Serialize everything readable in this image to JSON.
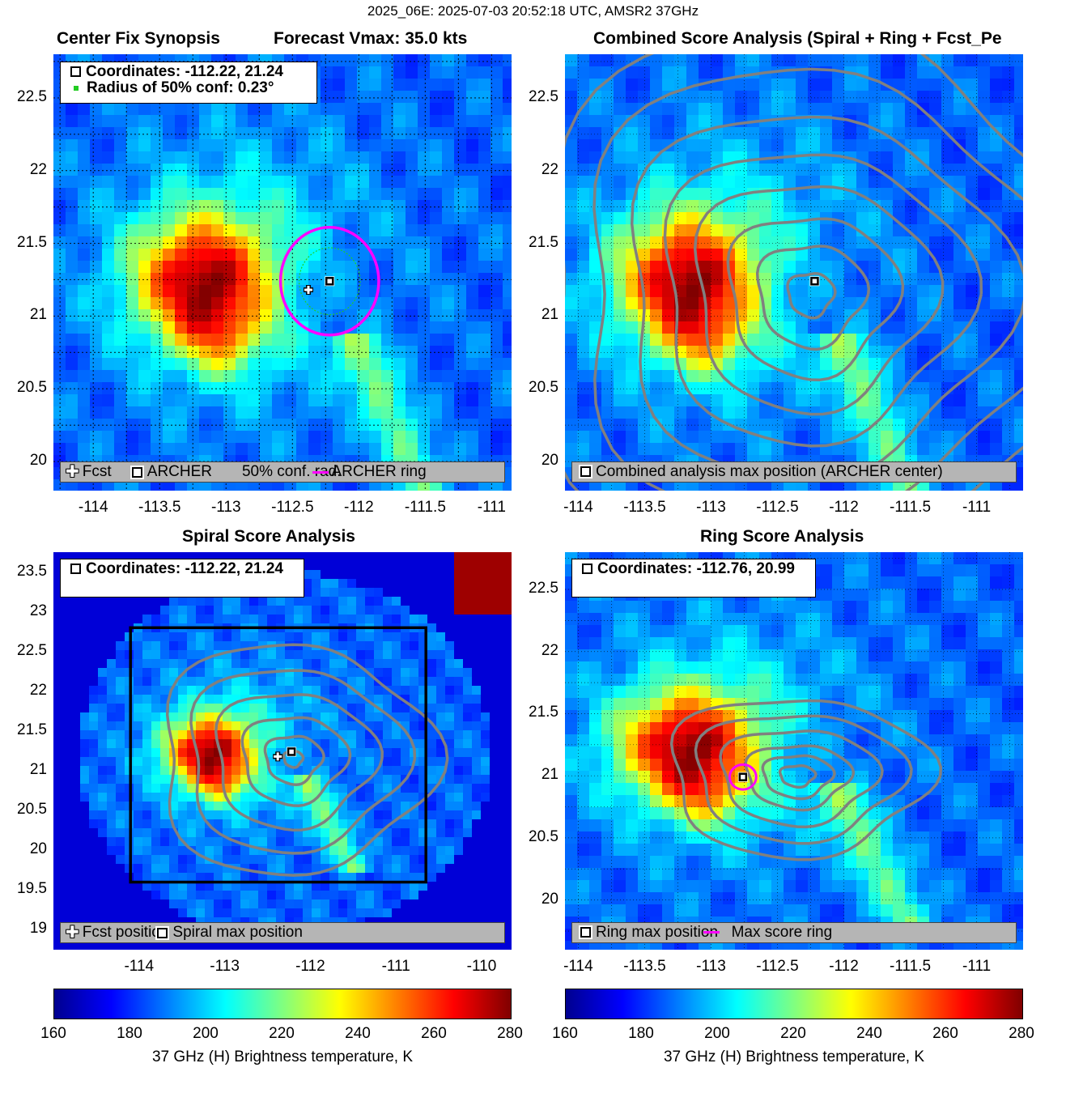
{
  "title": "2025_06E: 2025-07-03 20:52:18 UTC, AMSR2 37GHz",
  "panels": {
    "synopsis": {
      "title_left": "Center Fix Synopsis",
      "title_right": "Forecast Vmax: 35.0 kts",
      "info": [
        "Coordinates: -112.22, 21.24",
        "Radius of 50% conf: 0.23°"
      ],
      "legend": {
        "fcst": "Fcst",
        "archer": "ARCHER",
        "conf": "50% conf. rad.",
        "ring": "ARCHER ring"
      },
      "xticks": [
        "-114",
        "-113.5",
        "-113",
        "-112.5",
        "-112",
        "-111.5",
        "-111"
      ],
      "yticks": [
        "22.5",
        "22",
        "21.5",
        "21",
        "20.5",
        "20"
      ]
    },
    "combined": {
      "title": "Combined Score Analysis (Spiral + Ring + Fcst_Pe",
      "legend": "Combined analysis max position (ARCHER center)",
      "xticks": [
        "-114",
        "-113.5",
        "-113",
        "-112.5",
        "-112",
        "-111.5",
        "-111"
      ],
      "yticks": [
        "22.5",
        "22",
        "21.5",
        "21",
        "20.5",
        "20"
      ]
    },
    "spiral": {
      "title": "Spiral Score Analysis",
      "info": "Coordinates: -112.22, 21.24",
      "legend": {
        "fcst": "Fcst position",
        "max": "Spiral max position"
      },
      "xticks": [
        "-114",
        "-113",
        "-112",
        "-111",
        "-110"
      ],
      "yticks": [
        "23.5",
        "23",
        "22.5",
        "22",
        "21.5",
        "21",
        "20.5",
        "20",
        "19.5",
        "19"
      ]
    },
    "ring": {
      "title": "Ring Score Analysis",
      "info": "Coordinates: -112.76, 20.99",
      "legend": {
        "max": "Ring max position",
        "ring": "Max score ring"
      },
      "xticks": [
        "-114",
        "-113.5",
        "-113",
        "-112.5",
        "-112",
        "-111.5",
        "-111"
      ],
      "yticks": [
        "22.5",
        "22",
        "21.5",
        "21",
        "20.5",
        "20"
      ]
    }
  },
  "colorbar": {
    "ticks": [
      "160",
      "180",
      "200",
      "220",
      "240",
      "260",
      "280"
    ],
    "label": "37 GHz (H) Brightness temperature, K"
  },
  "chart_data": [
    {
      "type": "heatmap",
      "title": "Center Fix Synopsis",
      "subtitle": "Forecast Vmax: 35.0 kts",
      "xlim": [
        -114.3,
        -110.85
      ],
      "ylim": [
        19.8,
        22.8
      ],
      "center": [
        -112.22,
        21.24
      ],
      "fcst": [
        -112.38,
        21.18
      ],
      "conf_radius_deg": 0.23,
      "clim": [
        160,
        280
      ]
    },
    {
      "type": "heatmap",
      "title": "Combined Score Analysis (Spiral + Ring + Fcst_Pe",
      "xlim": [
        -114.1,
        -110.65
      ],
      "ylim": [
        19.8,
        22.8
      ],
      "center": [
        -112.22,
        21.24
      ],
      "clim": [
        160,
        280
      ]
    },
    {
      "type": "heatmap",
      "title": "Spiral Score Analysis",
      "xlim": [
        -115,
        -109.65
      ],
      "ylim": [
        18.75,
        23.75
      ],
      "center": [
        -112.22,
        21.24
      ],
      "fcst": [
        -112.38,
        21.18
      ],
      "clim": [
        160,
        280
      ]
    },
    {
      "type": "heatmap",
      "title": "Ring Score Analysis",
      "xlim": [
        -114.1,
        -110.65
      ],
      "ylim": [
        19.6,
        22.8
      ],
      "center": [
        -112.76,
        20.99
      ],
      "clim": [
        160,
        280
      ]
    }
  ]
}
